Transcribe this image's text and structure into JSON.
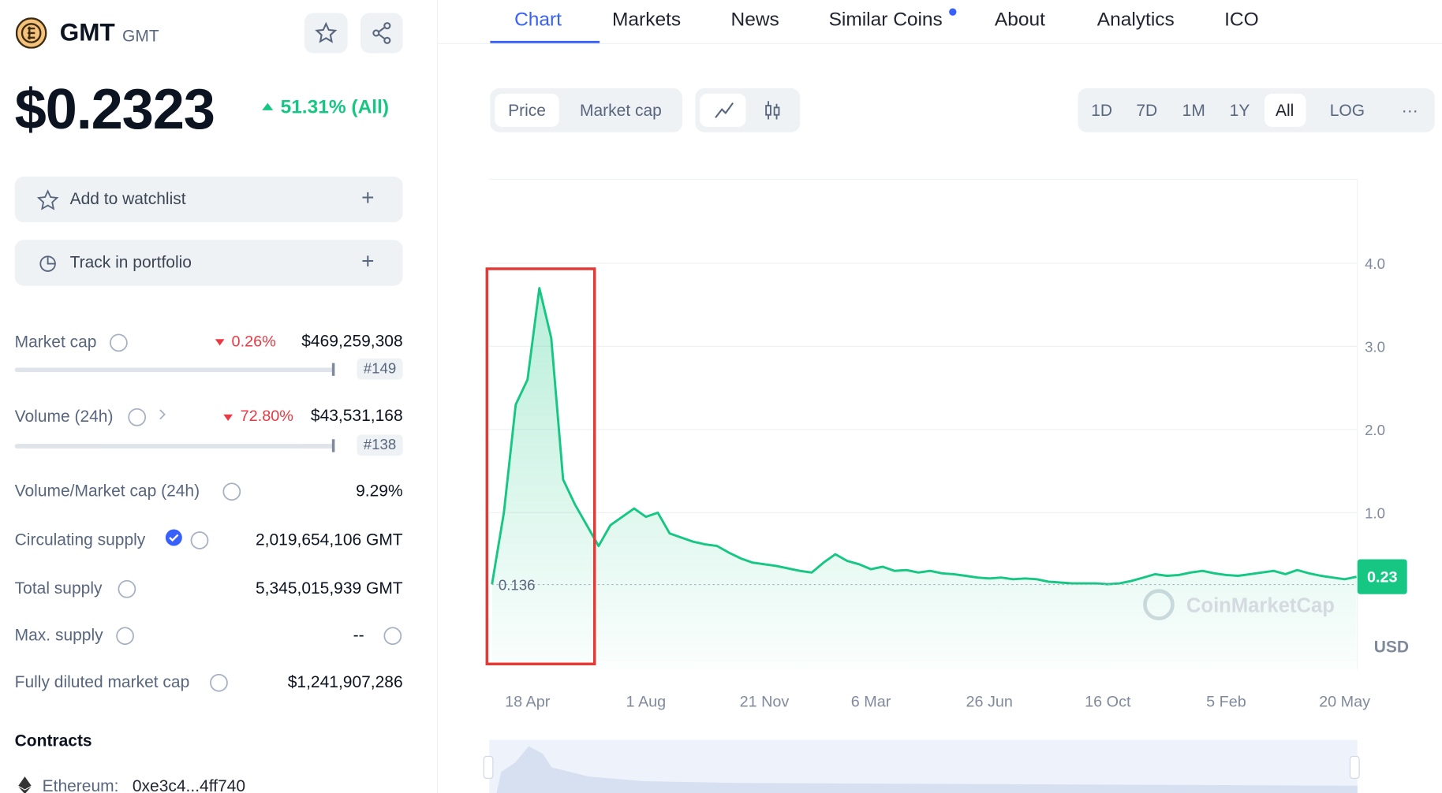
{
  "header": {
    "name": "GMT",
    "symbol": "GMT",
    "price": "$0.2323",
    "change": "51.31% (All)"
  },
  "actions": [
    "Add to watchlist",
    "Track in portfolio"
  ],
  "stats": [
    {
      "label": "Market cap",
      "change": "0.26%",
      "value": "$469,259,308",
      "rank": "#149"
    },
    {
      "label": "Volume (24h)",
      "change": "72.80%",
      "value": "$43,531,168",
      "rank": "#138"
    },
    {
      "label": "Volume/Market cap (24h)",
      "value": "9.29%"
    },
    {
      "label": "Circulating supply",
      "value": "2,019,654,106 GMT"
    },
    {
      "label": "Total supply",
      "value": "5,345,015,939 GMT"
    },
    {
      "label": "Max. supply",
      "value": "--"
    },
    {
      "label": "Fully diluted market cap",
      "value": "$1,241,907,286"
    }
  ],
  "contracts": {
    "title": "Contracts",
    "chain": "Ethereum:",
    "address": "0xe3c4...4ff740"
  },
  "tabs": [
    "Chart",
    "Markets",
    "News",
    "Similar Coins",
    "About",
    "Analytics",
    "ICO"
  ],
  "chart_toggles": [
    "Price",
    "Market cap"
  ],
  "ranges": [
    "1D",
    "7D",
    "1M",
    "1Y",
    "All",
    "LOG"
  ],
  "chart_data": {
    "type": "line",
    "categories": [
      null,
      null,
      null,
      "18 Apr",
      null,
      null,
      null,
      null,
      null,
      null,
      null,
      null,
      null,
      "1 Aug",
      null,
      null,
      null,
      null,
      null,
      null,
      null,
      null,
      null,
      "21 Nov",
      null,
      null,
      null,
      null,
      null,
      null,
      null,
      null,
      "6 Mar",
      null,
      null,
      null,
      null,
      null,
      null,
      null,
      null,
      null,
      "26 Jun",
      null,
      null,
      null,
      null,
      null,
      null,
      null,
      null,
      null,
      "16 Oct",
      null,
      null,
      null,
      null,
      null,
      null,
      null,
      null,
      null,
      "5 Feb",
      null,
      null,
      null,
      null,
      null,
      null,
      null,
      null,
      null,
      "20 May",
      null
    ],
    "series": [
      {
        "color": "#16c784",
        "values": [
          0.14,
          1.0,
          2.3,
          2.6,
          3.7,
          3.1,
          1.4,
          1.1,
          0.85,
          0.6,
          0.85,
          0.95,
          1.05,
          0.95,
          1.0,
          0.75,
          0.7,
          0.65,
          0.62,
          0.6,
          0.52,
          0.45,
          0.4,
          0.38,
          0.36,
          0.33,
          0.3,
          0.28,
          0.4,
          0.5,
          0.42,
          0.38,
          0.32,
          0.35,
          0.3,
          0.31,
          0.28,
          0.3,
          0.27,
          0.26,
          0.24,
          0.22,
          0.21,
          0.22,
          0.2,
          0.21,
          0.2,
          0.17,
          0.16,
          0.15,
          0.15,
          0.15,
          0.14,
          0.15,
          0.18,
          0.22,
          0.26,
          0.24,
          0.25,
          0.28,
          0.3,
          0.27,
          0.25,
          0.24,
          0.26,
          0.28,
          0.3,
          0.26,
          0.31,
          0.27,
          0.24,
          0.22,
          0.2,
          0.23
        ]
      }
    ],
    "ylim": [
      -0.88,
      5.01
    ],
    "yticks": [
      {
        "value": 1,
        "label": "1.0"
      },
      {
        "value": 2,
        "label": "2.0"
      },
      {
        "value": 3,
        "label": "3.0"
      },
      {
        "value": 4,
        "label": "4.0"
      }
    ],
    "grid": true,
    "low": 0.136,
    "current": 0.23,
    "unit": "USD",
    "watermark": "CoinMarketCap"
  }
}
